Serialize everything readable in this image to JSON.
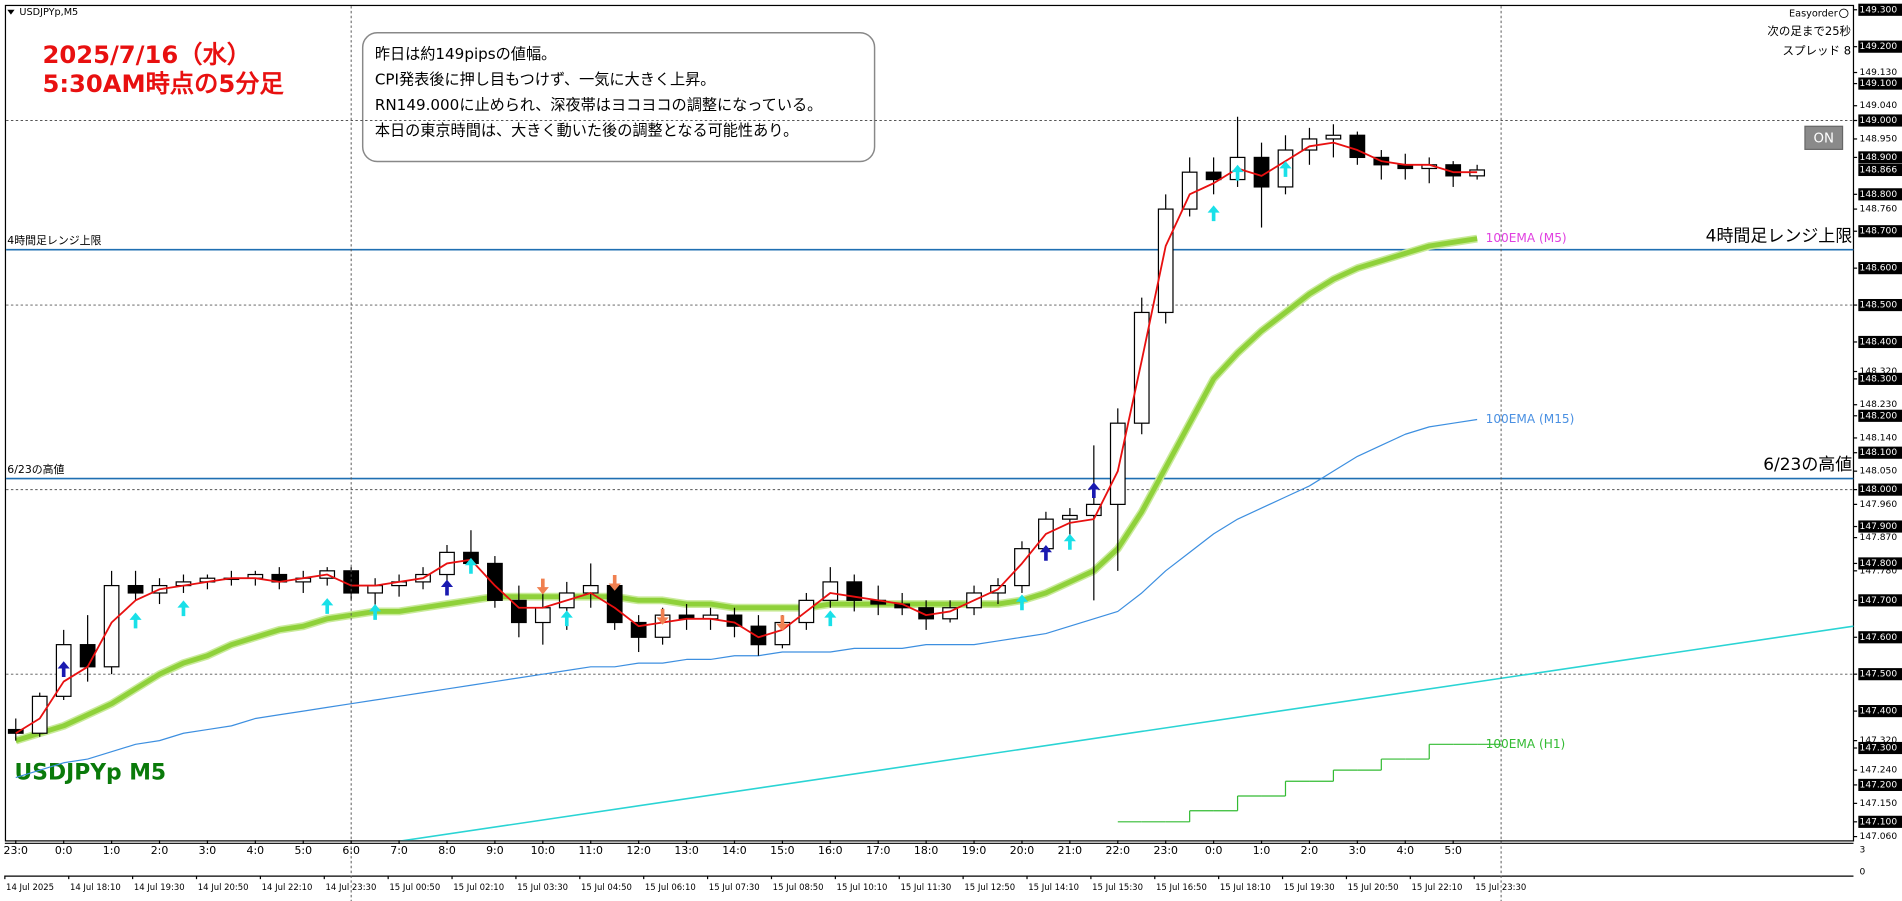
{
  "chart_data": {
    "type": "candlestick",
    "symbol_label": "USDJPYp,M5",
    "title_lines": [
      "2025/7/16（水）",
      "5:30AM時点の5分足"
    ],
    "watermark": "USDJPYp M5",
    "note_lines": [
      "昨日は約149pipsの値幅。",
      "CPI発表後に押し目もつけず、一気に大きく上昇。",
      "RN149.000に止められ、深夜帯はヨコヨコの調整になっている。",
      "本日の東京時間は、大きく動いた後の調整となる可能性あり。"
    ],
    "panel_lines": [
      "Easyorder",
      "次の足まで25秒",
      "スプレッド 8"
    ],
    "button": "ON",
    "categories": [
      "23:0",
      null,
      "0:0",
      null,
      "1:0",
      null,
      "2:0",
      null,
      "3:0",
      null,
      "4:0",
      null,
      "5:0",
      null,
      "6:0",
      null,
      "7:0",
      null,
      "8:0",
      null,
      "9:0",
      null,
      "10:0",
      null,
      "11:0",
      null,
      "12:0",
      null,
      "13:0",
      null,
      "14:0",
      null,
      "15:0",
      null,
      "16:0",
      null,
      "17:0",
      null,
      "18:0",
      null,
      "19:0",
      null,
      "20:0",
      null,
      "21:0",
      null,
      "22:0",
      null,
      "23:0",
      null,
      "0:0",
      null,
      "1:0",
      null,
      "2:0",
      null,
      "3:0",
      null,
      "4:0",
      null,
      "5:0",
      null
    ],
    "date_labels": [
      "14 Jul 2025",
      "14 Jul 18:10",
      "14 Jul 19:30",
      "14 Jul 20:50",
      "14 Jul 22:10",
      "14 Jul 23:30",
      "15 Jul 00:50",
      "15 Jul 02:10",
      "15 Jul 03:30",
      "15 Jul 04:50",
      "15 Jul 06:10",
      "15 Jul 07:30",
      "15 Jul 08:50",
      "15 Jul 10:10",
      "15 Jul 11:30",
      "15 Jul 12:50",
      "15 Jul 14:10",
      "15 Jul 15:30",
      "15 Jul 16:50",
      "15 Jul 18:10",
      "15 Jul 19:30",
      "15 Jul 20:50",
      "15 Jul 22:10",
      "15 Jul 23:30"
    ],
    "ohlc": [
      [
        147.35,
        147.38,
        147.32,
        147.34
      ],
      [
        147.34,
        147.45,
        147.33,
        147.44
      ],
      [
        147.44,
        147.62,
        147.43,
        147.58
      ],
      [
        147.58,
        147.66,
        147.48,
        147.52
      ],
      [
        147.52,
        147.78,
        147.5,
        147.74
      ],
      [
        147.74,
        147.78,
        147.7,
        147.72
      ],
      [
        147.72,
        147.76,
        147.69,
        147.74
      ],
      [
        147.74,
        147.77,
        147.72,
        147.75
      ],
      [
        147.75,
        147.77,
        147.73,
        147.76
      ],
      [
        147.76,
        147.78,
        147.74,
        147.76
      ],
      [
        147.76,
        147.78,
        147.74,
        147.77
      ],
      [
        147.77,
        147.79,
        147.73,
        147.75
      ],
      [
        147.75,
        147.78,
        147.72,
        147.76
      ],
      [
        147.76,
        147.79,
        147.74,
        147.78
      ],
      [
        147.78,
        147.79,
        147.7,
        147.72
      ],
      [
        147.72,
        147.76,
        147.68,
        147.74
      ],
      [
        147.74,
        147.77,
        147.71,
        147.75
      ],
      [
        147.75,
        147.79,
        147.73,
        147.77
      ],
      [
        147.77,
        147.85,
        147.75,
        147.83
      ],
      [
        147.83,
        147.89,
        147.78,
        147.8
      ],
      [
        147.8,
        147.82,
        147.68,
        147.7
      ],
      [
        147.7,
        147.74,
        147.6,
        147.64
      ],
      [
        147.64,
        147.72,
        147.58,
        147.68
      ],
      [
        147.68,
        147.75,
        147.62,
        147.72
      ],
      [
        147.72,
        147.8,
        147.68,
        147.74
      ],
      [
        147.74,
        147.76,
        147.62,
        147.64
      ],
      [
        147.64,
        147.66,
        147.56,
        147.6
      ],
      [
        147.6,
        147.68,
        147.58,
        147.66
      ],
      [
        147.66,
        147.69,
        147.62,
        147.65
      ],
      [
        147.65,
        147.68,
        147.62,
        147.66
      ],
      [
        147.66,
        147.68,
        147.6,
        147.63
      ],
      [
        147.63,
        147.66,
        147.55,
        147.58
      ],
      [
        147.58,
        147.66,
        147.57,
        147.64
      ],
      [
        147.64,
        147.72,
        147.62,
        147.7
      ],
      [
        147.7,
        147.79,
        147.68,
        147.75
      ],
      [
        147.75,
        147.77,
        147.67,
        147.7
      ],
      [
        147.7,
        147.74,
        147.66,
        147.69
      ],
      [
        147.69,
        147.72,
        147.66,
        147.68
      ],
      [
        147.68,
        147.7,
        147.62,
        147.65
      ],
      [
        147.65,
        147.7,
        147.64,
        147.68
      ],
      [
        147.68,
        147.74,
        147.66,
        147.72
      ],
      [
        147.72,
        147.76,
        147.69,
        147.74
      ],
      [
        147.74,
        147.86,
        147.72,
        147.84
      ],
      [
        147.84,
        147.94,
        147.82,
        147.92
      ],
      [
        147.92,
        147.95,
        147.86,
        147.93
      ],
      [
        147.93,
        148.12,
        147.7,
        147.96
      ],
      [
        147.96,
        148.22,
        147.78,
        148.18
      ],
      [
        148.18,
        148.52,
        148.15,
        148.48
      ],
      [
        148.48,
        148.8,
        148.45,
        148.76
      ],
      [
        148.76,
        148.9,
        148.74,
        148.86
      ],
      [
        148.86,
        148.9,
        148.8,
        148.84
      ],
      [
        148.84,
        149.01,
        148.82,
        148.9
      ],
      [
        148.9,
        148.94,
        148.71,
        148.82
      ],
      [
        148.82,
        148.96,
        148.8,
        148.92
      ],
      [
        148.92,
        148.98,
        148.88,
        148.95
      ],
      [
        148.95,
        148.99,
        148.9,
        148.96
      ],
      [
        148.96,
        148.97,
        148.88,
        148.9
      ],
      [
        148.9,
        148.92,
        148.84,
        148.88
      ],
      [
        148.88,
        148.91,
        148.84,
        148.87
      ],
      [
        148.87,
        148.9,
        148.83,
        148.88
      ],
      [
        148.88,
        148.89,
        148.82,
        148.85
      ],
      [
        148.85,
        148.88,
        148.84,
        148.866
      ]
    ],
    "series": [
      {
        "name": "100EMA (M5)",
        "color": "#8fd13a",
        "width": 4,
        "label_color": "#e040e0",
        "values": [
          147.32,
          147.34,
          147.36,
          147.39,
          147.42,
          147.46,
          147.5,
          147.53,
          147.55,
          147.58,
          147.6,
          147.62,
          147.63,
          147.65,
          147.66,
          147.67,
          147.67,
          147.68,
          147.69,
          147.7,
          147.71,
          147.71,
          147.71,
          147.71,
          147.71,
          147.71,
          147.7,
          147.7,
          147.69,
          147.69,
          147.68,
          147.68,
          147.68,
          147.68,
          147.69,
          147.69,
          147.69,
          147.69,
          147.69,
          147.69,
          147.69,
          147.69,
          147.7,
          147.72,
          147.75,
          147.78,
          147.84,
          147.94,
          148.06,
          148.18,
          148.3,
          148.37,
          148.43,
          148.48,
          148.53,
          148.57,
          148.6,
          148.62,
          148.64,
          148.66,
          148.67,
          148.68
        ]
      },
      {
        "name": "100EMA (M15)",
        "color": "#3d8fe0",
        "width": 1,
        "label_color": "#4a90e2",
        "values": [
          147.22,
          147.24,
          147.26,
          147.27,
          147.29,
          147.31,
          147.32,
          147.34,
          147.35,
          147.36,
          147.38,
          147.39,
          147.4,
          147.41,
          147.42,
          147.43,
          147.44,
          147.45,
          147.46,
          147.47,
          147.48,
          147.49,
          147.5,
          147.51,
          147.52,
          147.52,
          147.53,
          147.53,
          147.54,
          147.54,
          147.55,
          147.55,
          147.56,
          147.56,
          147.56,
          147.57,
          147.57,
          147.57,
          147.58,
          147.58,
          147.58,
          147.59,
          147.6,
          147.61,
          147.63,
          147.65,
          147.67,
          147.72,
          147.78,
          147.83,
          147.88,
          147.92,
          147.95,
          147.98,
          148.01,
          148.05,
          148.09,
          148.12,
          148.15,
          148.17,
          148.18,
          148.19
        ]
      },
      {
        "name": "100EMA (H1)",
        "color": "#33bb33",
        "width": 1,
        "step": true,
        "label_color": "#33bb33",
        "values": [
          null,
          null,
          null,
          null,
          null,
          null,
          null,
          null,
          null,
          null,
          null,
          null,
          null,
          null,
          null,
          null,
          null,
          null,
          null,
          null,
          null,
          null,
          null,
          null,
          null,
          null,
          null,
          null,
          null,
          null,
          null,
          null,
          null,
          null,
          null,
          null,
          null,
          null,
          null,
          null,
          null,
          null,
          null,
          null,
          null,
          null,
          147.1,
          147.1,
          147.1,
          147.13,
          147.13,
          147.17,
          147.17,
          147.21,
          147.21,
          147.24,
          147.24,
          147.27,
          147.27,
          147.31,
          147.31,
          147.31
        ]
      },
      {
        "color": "#e81010",
        "width": 1.5,
        "values": [
          147.34,
          147.38,
          147.48,
          147.52,
          147.64,
          147.7,
          147.73,
          147.74,
          147.75,
          147.76,
          147.76,
          147.75,
          147.76,
          147.77,
          147.74,
          147.74,
          147.75,
          147.76,
          147.8,
          147.81,
          147.74,
          147.68,
          147.68,
          147.7,
          147.72,
          147.68,
          147.63,
          147.64,
          147.65,
          147.65,
          147.64,
          147.6,
          147.62,
          147.67,
          147.72,
          147.71,
          147.7,
          147.69,
          147.66,
          147.67,
          147.7,
          147.73,
          147.8,
          147.88,
          147.91,
          147.92,
          148.05,
          148.35,
          148.66,
          148.8,
          148.83,
          148.87,
          148.85,
          148.89,
          148.93,
          148.94,
          148.92,
          148.89,
          148.88,
          148.88,
          148.86,
          148.86
        ]
      }
    ],
    "trendline": {
      "color": "#2ad4d4",
      "values": [
        146.89,
        147.63
      ]
    },
    "levels": [
      {
        "name": "4時間足レンジ上限",
        "value": 148.65,
        "color": "#1f6fb2"
      },
      {
        "name": "6/23の高値",
        "value": 148.03,
        "color": "#1f6fb2"
      }
    ],
    "signals": [
      {
        "direction": "up",
        "color": "#19e0e8",
        "x": [
          5,
          7,
          13,
          15,
          19,
          23,
          34,
          42,
          44,
          50,
          51,
          53
        ],
        "y": [
          147.667,
          147.7,
          147.706,
          147.69,
          147.815,
          147.673,
          147.673,
          147.716,
          147.88,
          148.77,
          148.88,
          148.89
        ]
      },
      {
        "direction": "up",
        "color": "#1a1ab0",
        "x": [
          2,
          18,
          43,
          45
        ],
        "y": [
          147.535,
          147.756,
          147.85,
          148.02
        ]
      },
      {
        "direction": "down",
        "color": "#f08050",
        "x": [
          22,
          25,
          27,
          32
        ],
        "y": [
          147.716,
          147.726,
          147.634,
          147.617
        ]
      }
    ],
    "ylim": [
      147.05,
      149.31
    ],
    "yticks": [
      {
        "value": 149.3,
        "label": "149.300"
      },
      {
        "value": 149.2,
        "label": "149.200"
      },
      {
        "value": 149.13,
        "label": "149.130"
      },
      {
        "value": 149.1,
        "label": "149.100"
      },
      {
        "value": 149.04,
        "label": "149.040"
      },
      {
        "value": 149.0,
        "label": "149.000"
      },
      {
        "value": 148.95,
        "label": "148.950"
      },
      {
        "value": 148.9,
        "label": "148.900"
      },
      {
        "value": 148.8,
        "label": "148.800"
      },
      {
        "value": 148.76,
        "label": "148.760"
      },
      {
        "value": 148.7,
        "label": "148.700"
      },
      {
        "value": 148.6,
        "label": "148.600"
      },
      {
        "value": 148.5,
        "label": "148.500"
      },
      {
        "value": 148.4,
        "label": "148.400"
      },
      {
        "value": 148.32,
        "label": "148.320"
      },
      {
        "value": 148.3,
        "label": "148.300"
      },
      {
        "value": 148.23,
        "label": "148.230"
      },
      {
        "value": 148.2,
        "label": "148.200"
      },
      {
        "value": 148.14,
        "label": "148.140"
      },
      {
        "value": 148.1,
        "label": "148.100"
      },
      {
        "value": 148.05,
        "label": "148.050"
      },
      {
        "value": 148.0,
        "label": "148.000"
      },
      {
        "value": 147.96,
        "label": "147.960"
      },
      {
        "value": 147.9,
        "label": "147.900"
      },
      {
        "value": 147.87,
        "label": "147.870"
      },
      {
        "value": 147.8,
        "label": "147.800"
      },
      {
        "value": 147.78,
        "label": "147.780"
      },
      {
        "value": 147.7,
        "label": "147.700"
      },
      {
        "value": 147.6,
        "label": "147.600"
      },
      {
        "value": 147.5,
        "label": "147.500"
      },
      {
        "value": 147.4,
        "label": "147.400"
      },
      {
        "value": 147.32,
        "label": "147.320"
      },
      {
        "value": 147.3,
        "label": "147.300"
      },
      {
        "value": 147.24,
        "label": "147.240"
      },
      {
        "value": 147.2,
        "label": "147.200"
      },
      {
        "value": 147.15,
        "label": "147.150"
      },
      {
        "value": 147.1,
        "label": "147.100"
      },
      {
        "value": 147.06,
        "label": "147.060"
      }
    ],
    "current_price": {
      "value": 148.866,
      "label": "148.866"
    },
    "grid_levels": [
      149.0,
      148.5,
      148.0,
      147.5
    ],
    "vgrid": [
      14,
      62
    ],
    "subwindow_ticks": [
      3,
      0
    ]
  }
}
